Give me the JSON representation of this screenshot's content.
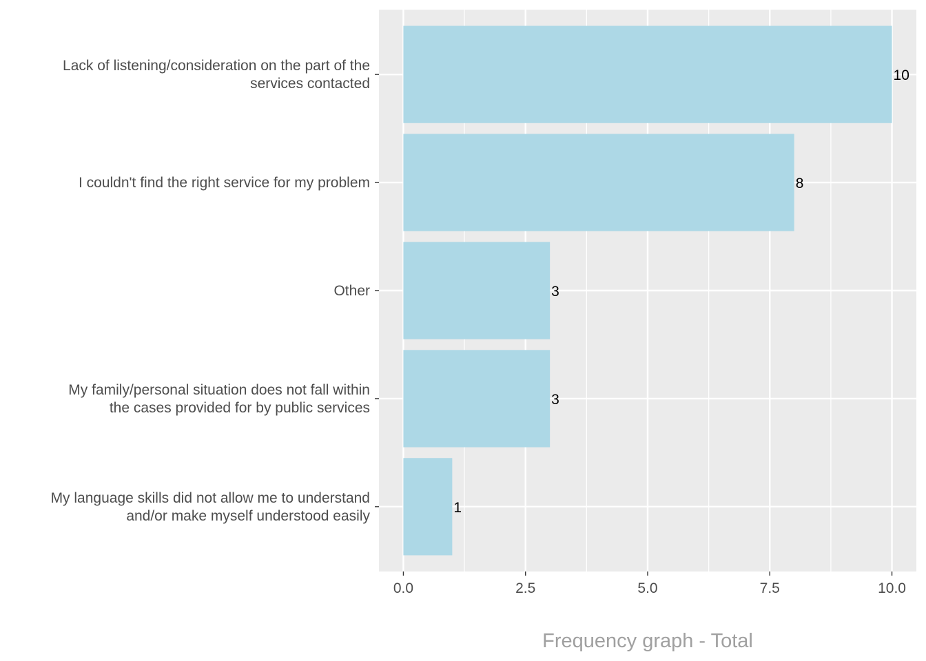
{
  "chart_data": {
    "type": "bar",
    "orientation": "horizontal",
    "categories": [
      [
        "Lack of listening/consideration on the part of the",
        "services contacted"
      ],
      [
        "I couldn't find the right service for my problem"
      ],
      [
        "Other"
      ],
      [
        "My family/personal situation does not fall within",
        "the cases provided for by public services"
      ],
      [
        "My language skills did not allow me to understand",
        "and/or make myself understood easily"
      ]
    ],
    "values": [
      10,
      8,
      3,
      3,
      1
    ],
    "data_labels": [
      "10",
      "8",
      "3",
      "3",
      "1"
    ],
    "xlabel": "Frequency graph - Total",
    "ylabel": "",
    "xlim": [
      -0.5,
      10.5
    ],
    "x_ticks": [
      0,
      2.5,
      5,
      7.5,
      10
    ],
    "x_tick_labels": [
      "0.0",
      "2.5",
      "5.0",
      "7.5",
      "10.0"
    ],
    "grid": true,
    "legend": "none",
    "colors": {
      "bar": "#ADD8E6",
      "panel": "#EBEBEB",
      "grid": "#FFFFFF",
      "text": "#4D4D4D",
      "title": "#A0A0A0",
      "data_label": "#000000"
    }
  }
}
